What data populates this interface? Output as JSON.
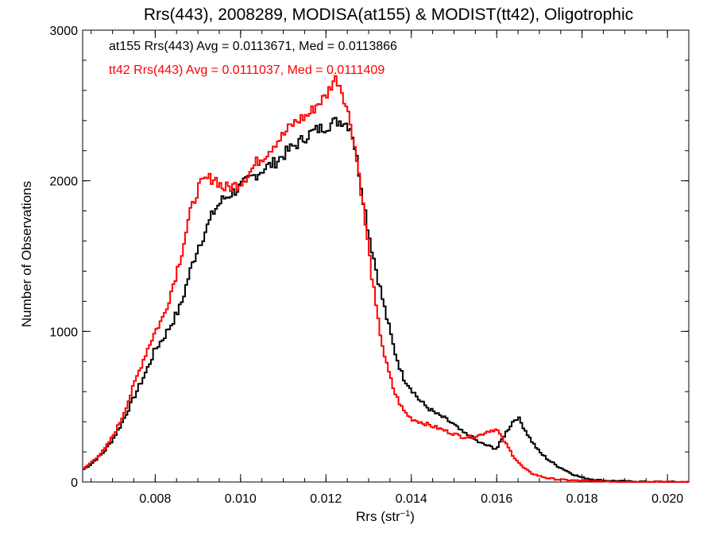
{
  "chart_data": {
    "type": "line",
    "title": "Rrs(443), 2008289, MODISA(at155) & MODIST(tt42), Oligotrophic",
    "xlabel_main": "Rrs (str",
    "xlabel_sup": "−1",
    "xlabel_close": ")",
    "ylabel": "Number of Observations",
    "xlim": [
      0.0063,
      0.0205
    ],
    "ylim": [
      0,
      3000
    ],
    "xticks": [
      {
        "value": 0.008,
        "label": "0.008"
      },
      {
        "value": 0.01,
        "label": "0.010"
      },
      {
        "value": 0.012,
        "label": "0.012"
      },
      {
        "value": 0.014,
        "label": "0.014"
      },
      {
        "value": 0.016,
        "label": "0.016"
      },
      {
        "value": 0.018,
        "label": "0.018"
      },
      {
        "value": 0.02,
        "label": "0.020"
      }
    ],
    "yticks": [
      {
        "value": 0,
        "label": "0"
      },
      {
        "value": 1000,
        "label": "1000"
      },
      {
        "value": 2000,
        "label": "2000"
      },
      {
        "value": 3000,
        "label": "3000"
      }
    ],
    "stats_lines": [
      {
        "text": "at155 Rrs(443) Avg = 0.0113671, Med = 0.0113866",
        "color": "#000000"
      },
      {
        "text": "tt42 Rrs(443) Avg = 0.0111037, Med = 0.0111409",
        "color": "#ff0000"
      }
    ],
    "series": [
      {
        "color": "#000000",
        "x": [
          0.0063,
          0.0065,
          0.0068,
          0.007,
          0.0072,
          0.0074,
          0.0076,
          0.0078,
          0.008,
          0.0082,
          0.0084,
          0.0086,
          0.0088,
          0.009,
          0.0092,
          0.0094,
          0.0096,
          0.0098,
          0.01,
          0.0102,
          0.0104,
          0.0106,
          0.0108,
          0.011,
          0.0112,
          0.0114,
          0.0116,
          0.0118,
          0.012,
          0.0122,
          0.0124,
          0.0126,
          0.0128,
          0.013,
          0.0132,
          0.0134,
          0.0136,
          0.0138,
          0.014,
          0.0142,
          0.0144,
          0.0146,
          0.0148,
          0.015,
          0.0152,
          0.0154,
          0.0156,
          0.0158,
          0.016,
          0.0162,
          0.0164,
          0.0165,
          0.0166,
          0.0168,
          0.017,
          0.0172,
          0.0174,
          0.0176,
          0.0178,
          0.018,
          0.0182,
          0.0185,
          0.019,
          0.0195,
          0.0205
        ],
        "y": [
          80,
          120,
          200,
          280,
          380,
          500,
          620,
          740,
          880,
          960,
          1060,
          1170,
          1380,
          1560,
          1680,
          1810,
          1880,
          1920,
          1960,
          2010,
          2050,
          2090,
          2120,
          2170,
          2220,
          2260,
          2310,
          2340,
          2360,
          2390,
          2400,
          2350,
          2020,
          1660,
          1380,
          1120,
          880,
          700,
          620,
          540,
          490,
          450,
          420,
          380,
          330,
          300,
          260,
          240,
          220,
          320,
          410,
          430,
          380,
          280,
          200,
          150,
          110,
          80,
          50,
          30,
          20,
          10,
          5,
          2,
          0
        ]
      },
      {
        "color": "#ff0000",
        "x": [
          0.0063,
          0.0065,
          0.0068,
          0.007,
          0.0072,
          0.0074,
          0.0076,
          0.0078,
          0.008,
          0.0082,
          0.0084,
          0.0086,
          0.0088,
          0.009,
          0.0092,
          0.0094,
          0.0096,
          0.0098,
          0.01,
          0.0102,
          0.0104,
          0.0106,
          0.0108,
          0.011,
          0.0112,
          0.0114,
          0.0116,
          0.0118,
          0.012,
          0.0121,
          0.0122,
          0.0123,
          0.0124,
          0.0126,
          0.0128,
          0.013,
          0.0132,
          0.0134,
          0.0136,
          0.0138,
          0.014,
          0.0142,
          0.0144,
          0.0146,
          0.0148,
          0.015,
          0.0152,
          0.0154,
          0.0156,
          0.0158,
          0.016,
          0.0162,
          0.0164,
          0.0166,
          0.0168,
          0.017,
          0.0172,
          0.0175,
          0.018,
          0.0185,
          0.019,
          0.0205
        ],
        "y": [
          80,
          130,
          210,
          300,
          410,
          560,
          720,
          870,
          1000,
          1100,
          1290,
          1500,
          1760,
          1950,
          2010,
          2020,
          1950,
          1960,
          1990,
          2050,
          2130,
          2180,
          2250,
          2300,
          2370,
          2410,
          2440,
          2510,
          2560,
          2620,
          2680,
          2660,
          2580,
          2360,
          2000,
          1540,
          1100,
          800,
          600,
          480,
          420,
          400,
          380,
          360,
          340,
          320,
          300,
          300,
          310,
          340,
          350,
          260,
          170,
          100,
          60,
          40,
          25,
          15,
          8,
          4,
          2,
          0
        ]
      }
    ]
  }
}
